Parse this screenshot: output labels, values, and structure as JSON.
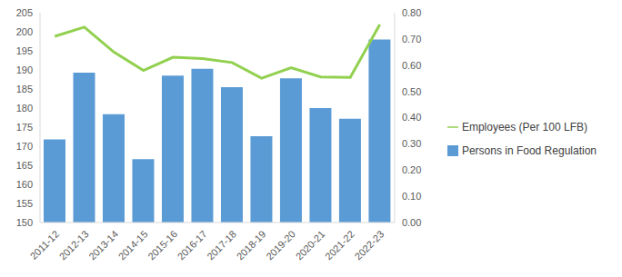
{
  "chart_data": {
    "type": "bar",
    "categories": [
      "2011-12",
      "2012-13",
      "2013-14",
      "2014-15",
      "2015-16",
      "2016-17",
      "2017-18",
      "2018-19",
      "2019-20",
      "2020-21",
      "2021-22",
      "2022-23"
    ],
    "series": [
      {
        "name": "Persons in Food Regulation",
        "type": "bar",
        "color": "#5b9bd5",
        "values": [
          171.8,
          189.3,
          178.4,
          166.6,
          188.5,
          190.3,
          185.5,
          172.6,
          187.8,
          180.0,
          177.2,
          198.0
        ]
      },
      {
        "name": "Employees (Per 100 LFB)",
        "type": "line",
        "axis": "y2",
        "color": "#92d050",
        "marker": "none",
        "values": [
          0.71,
          0.745,
          0.65,
          0.58,
          0.63,
          0.625,
          0.61,
          0.55,
          0.59,
          0.555,
          0.553,
          0.755
        ]
      }
    ],
    "ylim": [
      150,
      205
    ],
    "yticks": [
      150,
      155,
      160,
      165,
      170,
      175,
      180,
      185,
      190,
      195,
      200,
      205
    ],
    "y2lim": [
      0,
      0.8
    ],
    "y2ticks": [
      {
        "value": 0,
        "label": "0.00"
      },
      {
        "value": 0.1,
        "label": "0.10"
      },
      {
        "value": 0.2,
        "label": "0.20"
      },
      {
        "value": 0.3,
        "label": "0.30"
      },
      {
        "value": 0.4,
        "label": "0.40"
      },
      {
        "value": 0.5,
        "label": "0.50"
      },
      {
        "value": 0.6,
        "label": "0.60"
      },
      {
        "value": 0.7,
        "label": "0.70"
      },
      {
        "value": 0.8,
        "label": "0.80"
      }
    ],
    "grid": false,
    "legend": "right"
  }
}
